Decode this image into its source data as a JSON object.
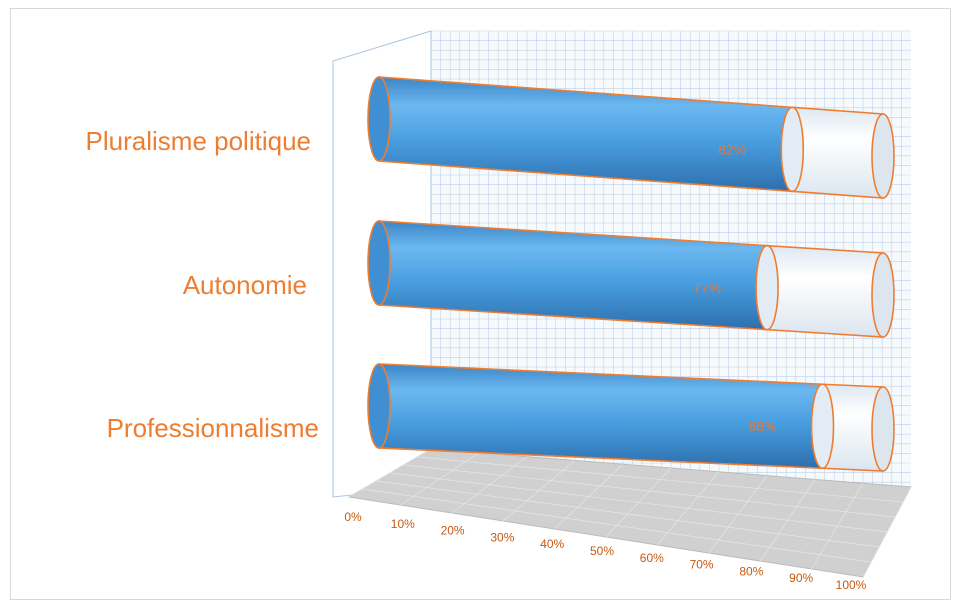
{
  "chart_data": {
    "type": "bar",
    "orientation": "horizontal",
    "style": "3d-cylinder-100pct",
    "title": "",
    "xlabel": "",
    "ylabel": "",
    "categories": [
      "Pluralisme politique",
      "Autonomie",
      "Professionnalisme"
    ],
    "values": [
      82,
      77,
      88
    ],
    "data_labels": [
      "82%",
      "77%",
      "88%"
    ],
    "xlim": [
      0,
      100
    ],
    "x_ticks": [
      "0%",
      "10%",
      "20%",
      "30%",
      "40%",
      "50%",
      "60%",
      "70%",
      "80%",
      "90%",
      "100%"
    ],
    "grid": true,
    "legend": "none",
    "colors": {
      "bar_fill": "#4a9fe0",
      "bar_outline": "#ed7d31",
      "remainder_fill": "#eef3f8",
      "category_label": "#ed7d31",
      "tick_label": "#c55a11",
      "grid": "#bcd1ea",
      "floor": "#d0d0d0"
    }
  }
}
